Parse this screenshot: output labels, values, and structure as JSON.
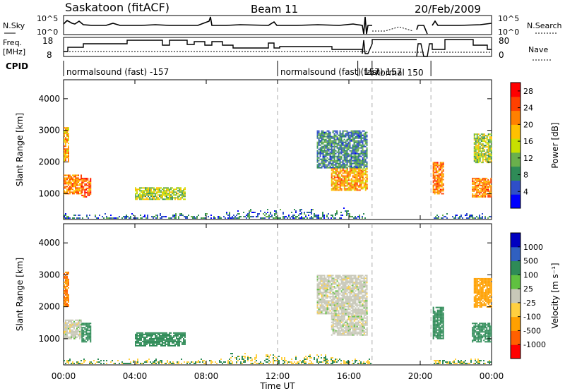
{
  "header": {
    "station": "Saskatoon (fitACF)",
    "beam": "Beam 11",
    "date": "20/Feb/2009"
  },
  "strip_labels": {
    "nsky": "N.Sky",
    "nsky_ticks": [
      "10^5",
      "10^0"
    ],
    "nsearch": "N.Search",
    "freq": "Freq.",
    "freq_unit": "[MHz]",
    "freq_ticks": [
      "18",
      "8"
    ],
    "nave": "Nave",
    "nave_ticks": [
      "80",
      "0"
    ],
    "cpid": "CPID"
  },
  "cpid_segments": [
    {
      "label": "normalsound (fast) -157",
      "start": 0.0,
      "end": 12.0
    },
    {
      "label": "normalsound (fast) 157",
      "start": 12.0,
      "end": 17.3
    },
    {
      "label": "(fast) 157",
      "start": 16.5,
      "end": 19.2
    },
    {
      "label": "normal 150",
      "start": 17.3,
      "end": 20.6
    }
  ],
  "colors": {
    "power": [
      "#0000ff",
      "#2f4fc8",
      "#2e8b57",
      "#6ab04c",
      "#c8e000",
      "#ffc000",
      "#ff8000",
      "#ff4000",
      "#ff0000"
    ],
    "velocity": [
      "#ff0000",
      "#ff6000",
      "#ffa000",
      "#ffd040",
      "#c8c8b8",
      "#60c040",
      "#2e8b57",
      "#3060c0",
      "#0000c0"
    ]
  },
  "chart_data": [
    {
      "type": "heatmap",
      "title": "",
      "xlabel": "Time UT",
      "ylabel": "Slant Range [km]",
      "xlim": [
        0,
        24
      ],
      "ylim": [
        180,
        4600
      ],
      "xticks": [
        "00:00",
        "04:00",
        "08:00",
        "12:00",
        "16:00",
        "20:00",
        "00:00"
      ],
      "yticks": [
        1000,
        2000,
        3000,
        4000
      ],
      "colorbar": {
        "label": "Power [dB]",
        "ticks": [
          4,
          8,
          12,
          16,
          20,
          24,
          28
        ],
        "range": [
          0,
          30
        ]
      },
      "echo_regions": [
        {
          "t0": 0.0,
          "t1": 0.3,
          "r0": 2000,
          "r1": 3100,
          "level": 20
        },
        {
          "t0": 0.0,
          "t1": 1.0,
          "r0": 1000,
          "r1": 1600,
          "level": 22
        },
        {
          "t0": 1.0,
          "t1": 1.5,
          "r0": 900,
          "r1": 1500,
          "level": 24
        },
        {
          "t0": 4.0,
          "t1": 6.8,
          "r0": 800,
          "r1": 1200,
          "level": 14
        },
        {
          "t0": 14.2,
          "t1": 17.0,
          "r0": 1800,
          "r1": 3000,
          "level": 8
        },
        {
          "t0": 15.0,
          "t1": 17.0,
          "r0": 1100,
          "r1": 1800,
          "level": 20
        },
        {
          "t0": 20.7,
          "t1": 21.3,
          "r0": 1000,
          "r1": 2000,
          "level": 22
        },
        {
          "t0": 22.9,
          "t1": 24.0,
          "r0": 900,
          "r1": 1500,
          "level": 22
        },
        {
          "t0": 23.0,
          "t1": 24.0,
          "r0": 2000,
          "r1": 2900,
          "level": 14
        }
      ]
    },
    {
      "type": "heatmap",
      "title": "",
      "xlabel": "Time UT",
      "ylabel": "Slant Range [km]",
      "xlim": [
        0,
        24
      ],
      "ylim": [
        180,
        4600
      ],
      "xticks": [
        "00:00",
        "04:00",
        "08:00",
        "12:00",
        "16:00",
        "20:00",
        "00:00"
      ],
      "yticks": [
        1000,
        2000,
        3000,
        4000
      ],
      "colorbar": {
        "label": "Velocity [m s⁻¹]",
        "ticks": [
          -1000,
          -500,
          -100,
          -25,
          25,
          100,
          500,
          1000
        ]
      },
      "echo_regions": [
        {
          "t0": 0.0,
          "t1": 0.3,
          "r0": 2000,
          "r1": 3100,
          "level": -500
        },
        {
          "t0": 0.0,
          "t1": 1.0,
          "r0": 1000,
          "r1": 1600,
          "level": 0
        },
        {
          "t0": 1.0,
          "t1": 1.5,
          "r0": 900,
          "r1": 1500,
          "level": 150
        },
        {
          "t0": 4.0,
          "t1": 6.8,
          "r0": 800,
          "r1": 1200,
          "level": 400
        },
        {
          "t0": 14.2,
          "t1": 17.0,
          "r0": 1800,
          "r1": 3000,
          "level": 0
        },
        {
          "t0": 15.0,
          "t1": 17.0,
          "r0": 1100,
          "r1": 1800,
          "level": 0
        },
        {
          "t0": 20.7,
          "t1": 21.3,
          "r0": 1000,
          "r1": 2000,
          "level": 150
        },
        {
          "t0": 22.9,
          "t1": 24.0,
          "r0": 900,
          "r1": 1500,
          "level": 150
        },
        {
          "t0": 23.0,
          "t1": 24.0,
          "r0": 2000,
          "r1": 2900,
          "level": -150
        }
      ]
    }
  ]
}
